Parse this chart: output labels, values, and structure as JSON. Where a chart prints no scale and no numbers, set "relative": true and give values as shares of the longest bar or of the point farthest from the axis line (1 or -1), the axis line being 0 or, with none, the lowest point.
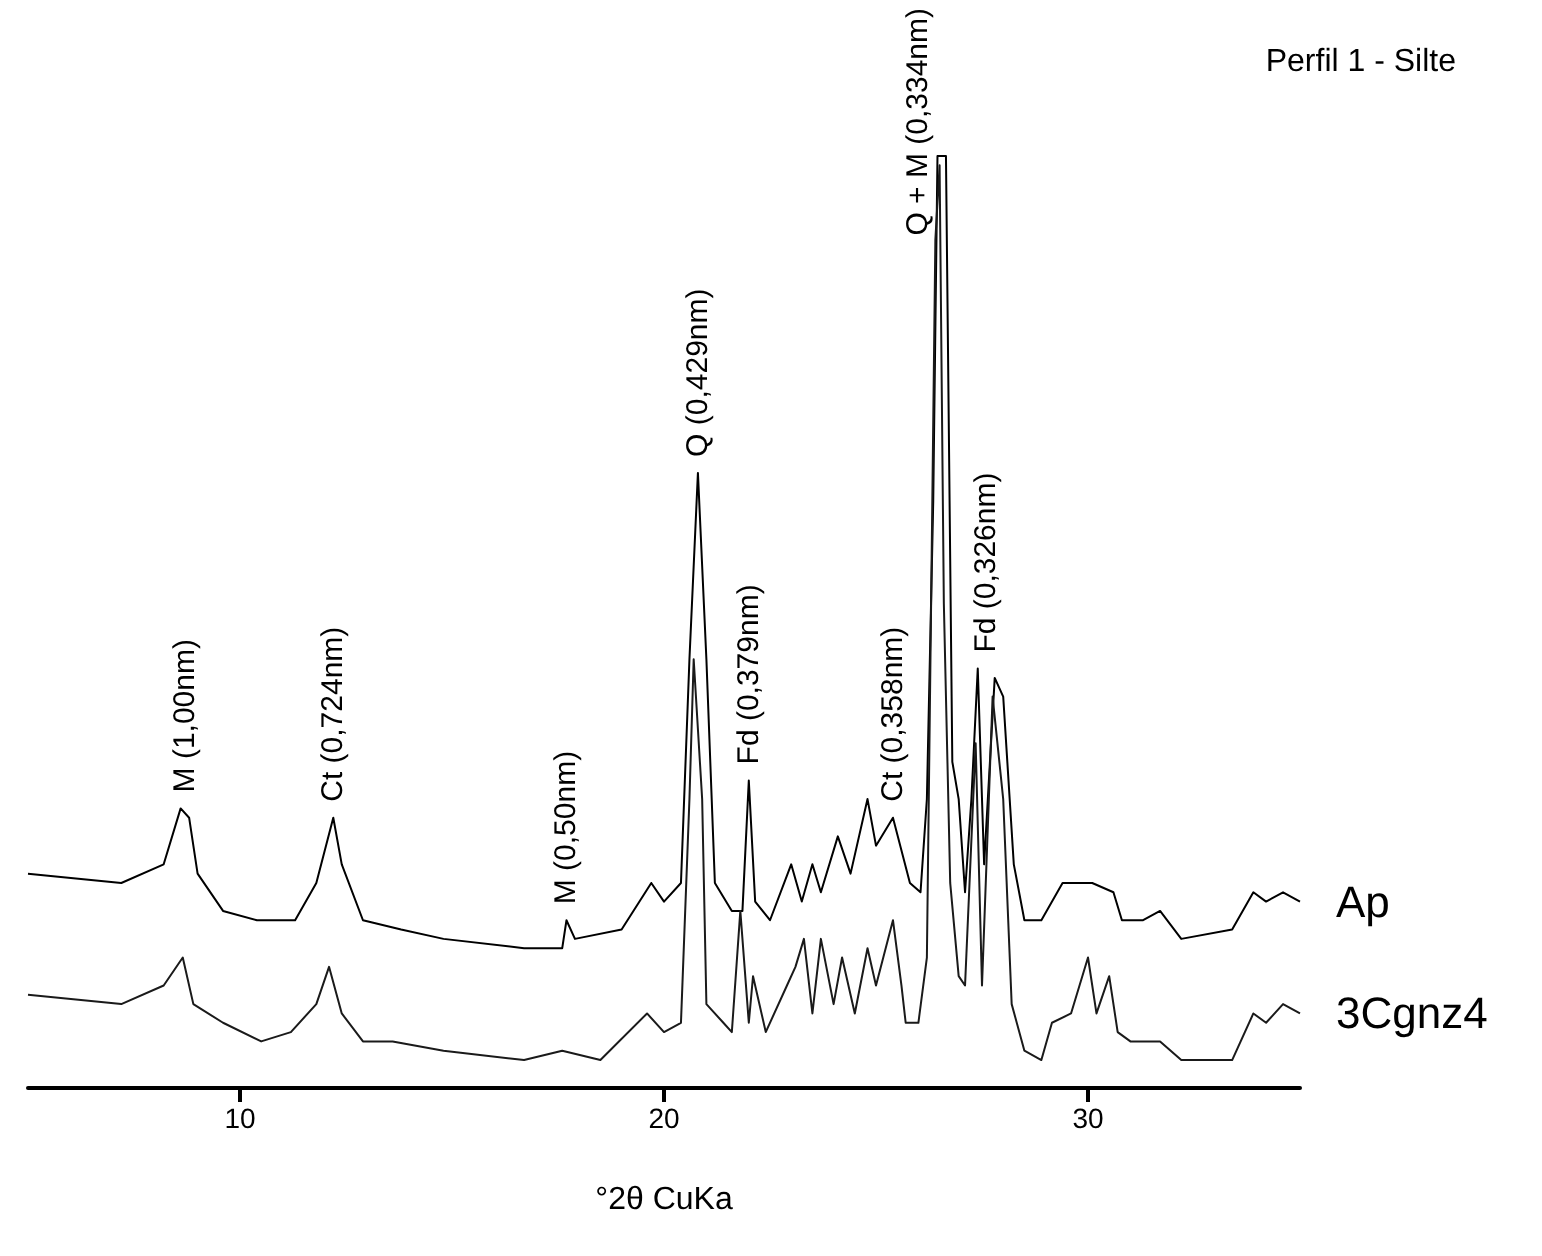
{
  "chart_data": {
    "type": "line",
    "title": "Perfil 1 - Silte",
    "xlabel": "°2θ CuKa",
    "relative": true,
    "xlim": [
      5,
      35
    ],
    "xticks": [
      10,
      20,
      30
    ],
    "marker": "none",
    "legend": false,
    "grid": false,
    "tick_labels": "x",
    "series": [
      {
        "name": "Ap",
        "color": "#000000",
        "x": [
          5.0,
          7.2,
          8.2,
          8.6,
          8.8,
          9.0,
          9.6,
          10.4,
          11.3,
          11.8,
          12.2,
          12.4,
          12.9,
          13.8,
          14.8,
          16.7,
          17.6,
          17.7,
          17.9,
          19.0,
          19.7,
          20.0,
          20.4,
          20.6,
          20.8,
          21.0,
          21.2,
          21.6,
          21.85,
          22.0,
          22.15,
          22.5,
          23.0,
          23.25,
          23.5,
          23.7,
          24.1,
          24.4,
          24.8,
          25.0,
          25.4,
          25.8,
          26.05,
          26.2,
          26.35,
          26.45,
          26.65,
          26.8,
          26.95,
          27.1,
          27.25,
          27.4,
          27.55,
          27.8,
          28.0,
          28.25,
          28.5,
          28.9,
          29.4,
          30.1,
          30.6,
          30.8,
          31.3,
          31.7,
          32.2,
          33.4,
          33.9,
          34.2,
          34.6,
          35.0
        ],
        "values": [
          0.23,
          0.22,
          0.24,
          0.3,
          0.29,
          0.23,
          0.19,
          0.18,
          0.18,
          0.22,
          0.29,
          0.24,
          0.18,
          0.17,
          0.16,
          0.15,
          0.15,
          0.18,
          0.16,
          0.17,
          0.22,
          0.2,
          0.22,
          0.46,
          0.66,
          0.46,
          0.22,
          0.19,
          0.19,
          0.33,
          0.2,
          0.18,
          0.24,
          0.2,
          0.24,
          0.21,
          0.27,
          0.23,
          0.31,
          0.26,
          0.29,
          0.22,
          0.21,
          0.31,
          0.63,
          1.0,
          1.0,
          0.35,
          0.31,
          0.21,
          0.31,
          0.45,
          0.24,
          0.44,
          0.42,
          0.24,
          0.18,
          0.18,
          0.22,
          0.22,
          0.21,
          0.18,
          0.18,
          0.19,
          0.16,
          0.17,
          0.21,
          0.2,
          0.21,
          0.2
        ]
      },
      {
        "name": "3Cgnz4",
        "color": "#1a1a1a",
        "x": [
          5.0,
          7.2,
          8.2,
          8.65,
          8.9,
          9.6,
          10.5,
          11.2,
          11.8,
          12.1,
          12.4,
          12.9,
          13.6,
          14.8,
          16.7,
          17.6,
          18.5,
          19.6,
          20.0,
          20.4,
          20.6,
          20.7,
          20.9,
          21.0,
          21.4,
          21.6,
          21.8,
          22.0,
          22.1,
          22.4,
          22.9,
          23.1,
          23.3,
          23.5,
          23.7,
          24.0,
          24.2,
          24.5,
          24.8,
          25.0,
          25.4,
          25.6,
          25.7,
          26.0,
          26.2,
          26.3,
          26.4,
          26.5,
          26.6,
          26.75,
          26.95,
          27.1,
          27.35,
          27.5,
          27.75,
          28.0,
          28.2,
          28.5,
          28.9,
          29.15,
          29.6,
          30.0,
          30.2,
          30.5,
          30.7,
          31.0,
          31.7,
          32.2,
          33.4,
          33.9,
          34.2,
          34.6,
          35.0
        ],
        "values": [
          0.1,
          0.09,
          0.11,
          0.14,
          0.09,
          0.07,
          0.05,
          0.06,
          0.09,
          0.13,
          0.08,
          0.05,
          0.05,
          0.04,
          0.03,
          0.04,
          0.03,
          0.08,
          0.06,
          0.07,
          0.31,
          0.46,
          0.31,
          0.09,
          0.07,
          0.06,
          0.19,
          0.07,
          0.12,
          0.06,
          0.11,
          0.13,
          0.16,
          0.08,
          0.16,
          0.09,
          0.14,
          0.08,
          0.15,
          0.11,
          0.18,
          0.11,
          0.07,
          0.07,
          0.14,
          0.52,
          0.91,
          0.99,
          0.52,
          0.22,
          0.12,
          0.11,
          0.37,
          0.11,
          0.42,
          0.31,
          0.09,
          0.04,
          0.03,
          0.07,
          0.08,
          0.14,
          0.08,
          0.12,
          0.06,
          0.05,
          0.05,
          0.03,
          0.03,
          0.08,
          0.07,
          0.09,
          0.08
        ]
      }
    ],
    "annotations": [
      {
        "text": "M (1,00nm)",
        "x": 8.7,
        "y": 0.3
      },
      {
        "text": "Ct (0,724nm)",
        "x": 12.2,
        "y": 0.29
      },
      {
        "text": "M (0,50nm)",
        "x": 17.7,
        "y": 0.18
      },
      {
        "text": "Q (0,429nm)",
        "x": 20.8,
        "y": 0.66
      },
      {
        "text": "Fd (0,379nm)",
        "x": 22.0,
        "y": 0.33
      },
      {
        "text": "Ct (0,358nm)",
        "x": 25.4,
        "y": 0.29
      },
      {
        "text": "Q + M (0,334nm)",
        "x": 26.55,
        "y": 1.0
      },
      {
        "text": "Fd (0,326nm)",
        "x": 27.6,
        "y": 0.45
      }
    ]
  }
}
